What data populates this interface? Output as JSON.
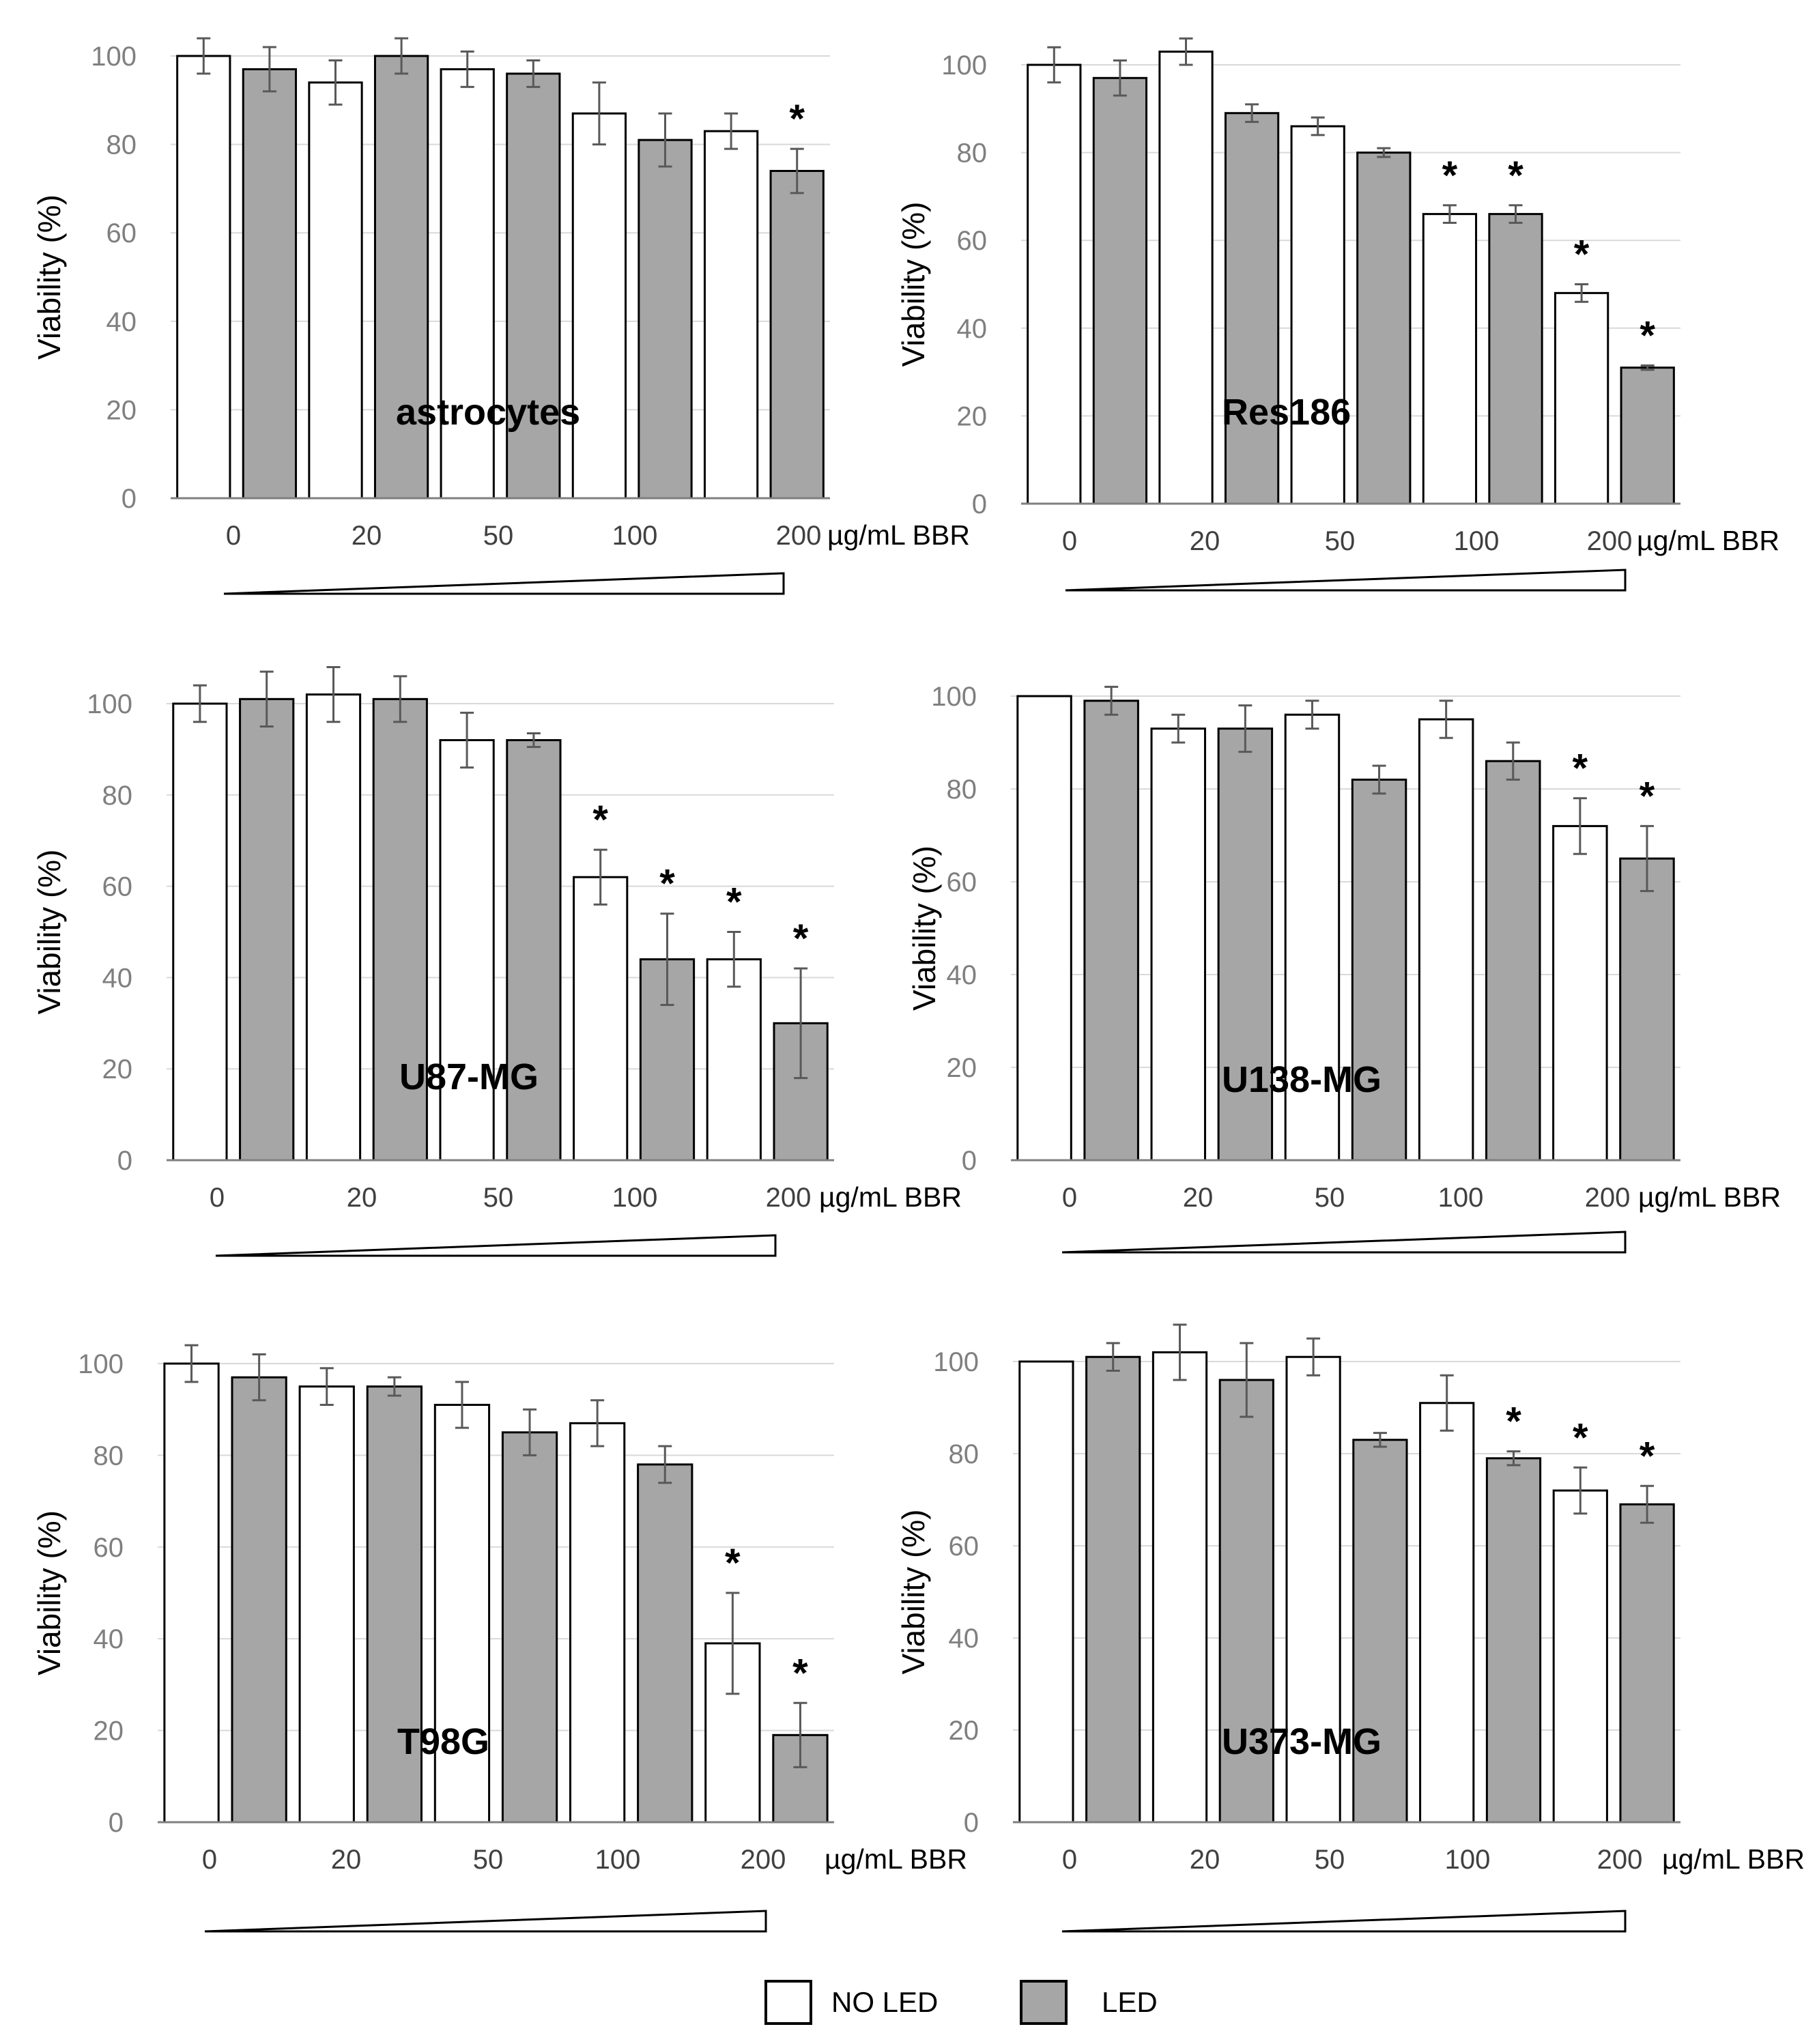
{
  "legend": {
    "items": [
      {
        "label": "NO LED",
        "color": "#ffffff"
      },
      {
        "label": "LED",
        "color": "#a6a6a6"
      }
    ]
  },
  "colors": {
    "no_led": "#ffffff",
    "led": "#a6a6a6",
    "grid": "#d9d9d9",
    "axis": "#7f7f7f",
    "error_bar": "#595959"
  },
  "chart_data": [
    {
      "type": "bar",
      "title": "astrocytes",
      "ylabel": "Viability (%)",
      "xlabel": "µg/mL BBR",
      "categories": [
        "0",
        "20",
        "50",
        "100",
        "200"
      ],
      "yticks": [
        "0",
        "20",
        "40",
        "60",
        "80",
        "100"
      ],
      "ylim": [
        0,
        100
      ],
      "series": [
        {
          "name": "NO LED",
          "values": [
            100,
            94,
            97,
            87,
            83
          ],
          "errors": [
            4,
            5,
            4,
            7,
            4
          ]
        },
        {
          "name": "LED",
          "values": [
            97,
            100,
            96,
            81,
            74
          ],
          "errors": [
            5,
            4,
            3,
            6,
            5
          ]
        }
      ],
      "significance": [
        {
          "series": "LED",
          "category": "200",
          "label": "*"
        }
      ]
    },
    {
      "type": "bar",
      "title": "Res186",
      "ylabel": "Viability (%)",
      "xlabel": "µg/mL BBR",
      "categories": [
        "0",
        "20",
        "50",
        "100",
        "200"
      ],
      "yticks": [
        "0",
        "20",
        "40",
        "60",
        "80",
        "100"
      ],
      "ylim": [
        0,
        100
      ],
      "series": [
        {
          "name": "NO LED",
          "values": [
            100,
            103,
            86,
            66,
            48
          ],
          "errors": [
            4,
            3,
            2,
            2,
            2
          ]
        },
        {
          "name": "LED",
          "values": [
            97,
            89,
            80,
            66,
            31
          ],
          "errors": [
            4,
            2,
            1,
            2,
            0.5
          ]
        }
      ],
      "significance": [
        {
          "series": "NO LED",
          "category": "100",
          "label": "*"
        },
        {
          "series": "LED",
          "category": "100",
          "label": "*"
        },
        {
          "series": "NO LED",
          "category": "200",
          "label": "*"
        },
        {
          "series": "LED",
          "category": "200",
          "label": "*"
        }
      ]
    },
    {
      "type": "bar",
      "title": "U87-MG",
      "ylabel": "Viability (%)",
      "xlabel": "µg/mL BBR",
      "categories": [
        "0",
        "20",
        "50",
        "100",
        "200"
      ],
      "yticks": [
        "0",
        "20",
        "40",
        "60",
        "80",
        "100"
      ],
      "ylim": [
        0,
        100
      ],
      "series": [
        {
          "name": "NO LED",
          "values": [
            100,
            102,
            92,
            62,
            44
          ],
          "errors": [
            4,
            6,
            6,
            6,
            6
          ]
        },
        {
          "name": "LED",
          "values": [
            101,
            101,
            92,
            44,
            30
          ],
          "errors": [
            6,
            5,
            1.5,
            10,
            12
          ]
        }
      ],
      "significance": [
        {
          "series": "NO LED",
          "category": "100",
          "label": "*"
        },
        {
          "series": "LED",
          "category": "100",
          "label": "*"
        },
        {
          "series": "NO LED",
          "category": "200",
          "label": "*"
        },
        {
          "series": "LED",
          "category": "200",
          "label": "*"
        }
      ]
    },
    {
      "type": "bar",
      "title": "U138-MG",
      "ylabel": "Viability (%)",
      "xlabel": "µg/mL BBR",
      "categories": [
        "0",
        "20",
        "50",
        "100",
        "200"
      ],
      "yticks": [
        "0",
        "20",
        "40",
        "60",
        "80",
        "100"
      ],
      "ylim": [
        0,
        100
      ],
      "series": [
        {
          "name": "NO LED",
          "values": [
            100,
            93,
            96,
            95,
            72
          ],
          "errors": [
            0,
            3,
            3,
            4,
            6
          ]
        },
        {
          "name": "LED",
          "values": [
            99,
            93,
            82,
            86,
            65
          ],
          "errors": [
            3,
            5,
            3,
            4,
            7
          ]
        }
      ],
      "significance": [
        {
          "series": "NO LED",
          "category": "200",
          "label": "*"
        },
        {
          "series": "LED",
          "category": "200",
          "label": "*"
        }
      ]
    },
    {
      "type": "bar",
      "title": "T98G",
      "ylabel": "Viability (%)",
      "xlabel": "µg/mL BBR",
      "categories": [
        "0",
        "20",
        "50",
        "100",
        "200"
      ],
      "yticks": [
        "0",
        "20",
        "40",
        "60",
        "80",
        "100"
      ],
      "ylim": [
        0,
        100
      ],
      "series": [
        {
          "name": "NO LED",
          "values": [
            100,
            95,
            91,
            87,
            39
          ],
          "errors": [
            4,
            4,
            5,
            5,
            11
          ]
        },
        {
          "name": "LED",
          "values": [
            97,
            95,
            85,
            78,
            19
          ],
          "errors": [
            5,
            2,
            5,
            4,
            7
          ]
        }
      ],
      "significance": [
        {
          "series": "NO LED",
          "category": "200",
          "label": "*"
        },
        {
          "series": "LED",
          "category": "200",
          "label": "*"
        }
      ]
    },
    {
      "type": "bar",
      "title": "U373-MG",
      "ylabel": "Viability (%)",
      "xlabel": "µg/mL BBR",
      "categories": [
        "0",
        "20",
        "50",
        "100",
        "200"
      ],
      "yticks": [
        "0",
        "20",
        "40",
        "60",
        "80",
        "100"
      ],
      "ylim": [
        0,
        100
      ],
      "series": [
        {
          "name": "NO LED",
          "values": [
            100,
            102,
            101,
            91,
            72
          ],
          "errors": [
            0,
            6,
            4,
            6,
            5
          ]
        },
        {
          "name": "LED",
          "values": [
            101,
            96,
            83,
            79,
            69
          ],
          "errors": [
            3,
            8,
            1.5,
            1.5,
            4
          ]
        }
      ],
      "significance": [
        {
          "series": "LED",
          "category": "100",
          "label": "*"
        },
        {
          "series": "NO LED",
          "category": "200",
          "label": "*"
        },
        {
          "series": "LED",
          "category": "200",
          "label": "*"
        }
      ]
    }
  ]
}
